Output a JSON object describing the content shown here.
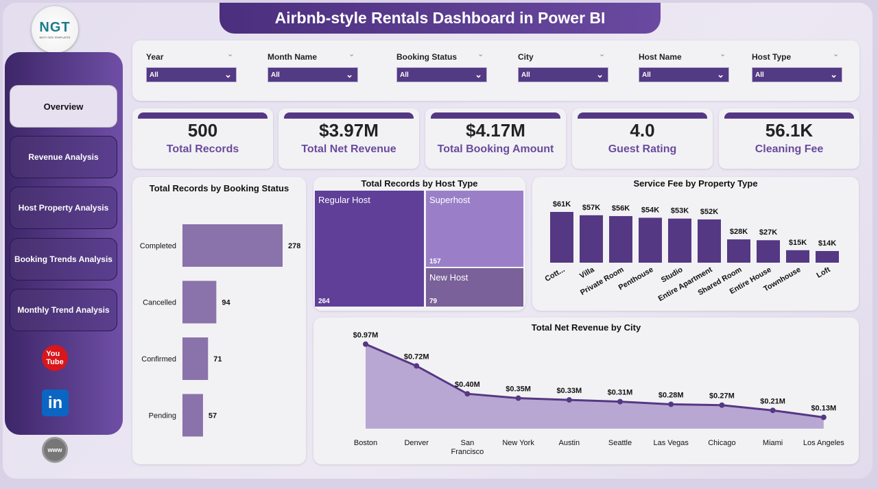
{
  "title": "Airbnb-style Rentals Dashboard in Power BI",
  "logo": {
    "text": "NGT",
    "sub": "NEXT GEN TEMPLATES"
  },
  "nav": [
    {
      "label": "Overview",
      "selected": true
    },
    {
      "label": "Revenue Analysis"
    },
    {
      "label": "Host Property Analysis"
    },
    {
      "label": "Booking Trends Analysis"
    },
    {
      "label": "Monthly Trend Analysis"
    }
  ],
  "social": [
    "youtube-icon",
    "linkedin-icon",
    "website-icon"
  ],
  "filters": [
    {
      "label": "Year",
      "value": "All"
    },
    {
      "label": "Month Name",
      "value": "All"
    },
    {
      "label": "Booking Status",
      "value": "All"
    },
    {
      "label": "City",
      "value": "All"
    },
    {
      "label": "Host Name",
      "value": "All"
    },
    {
      "label": "Host Type",
      "value": "All"
    }
  ],
  "kpis": [
    {
      "value": "500",
      "label": "Total Records"
    },
    {
      "value": "$3.97M",
      "label": "Total Net Revenue"
    },
    {
      "value": "$4.17M",
      "label": "Total Booking Amount"
    },
    {
      "value": "4.0",
      "label": "Guest Rating"
    },
    {
      "value": "56.1K",
      "label": "Cleaning Fee"
    }
  ],
  "colors": {
    "primary": "#553883",
    "bar_light": "#8a72aa",
    "area": "#b9a7d3"
  },
  "chart_data": [
    {
      "type": "bar",
      "orientation": "horizontal",
      "title": "Total Records by Booking Status",
      "categories": [
        "Completed",
        "Cancelled",
        "Confirmed",
        "Pending"
      ],
      "values": [
        278,
        94,
        71,
        57
      ],
      "labels": [
        "278",
        "94",
        "71",
        "57"
      ]
    },
    {
      "type": "treemap",
      "title": "Total Records by Host Type",
      "categories": [
        "Regular Host",
        "Superhost",
        "New Host"
      ],
      "values": [
        264,
        157,
        79
      ],
      "labels": [
        "264",
        "157",
        "79"
      ]
    },
    {
      "type": "bar",
      "title": "Service Fee by Property Type",
      "categories": [
        "Cott...",
        "Villa",
        "Private Room",
        "Penthouse",
        "Studio",
        "Entire Apartment",
        "Shared Room",
        "Entire House",
        "Townhouse",
        "Loft"
      ],
      "values": [
        61,
        57,
        56,
        54,
        53,
        52,
        28,
        27,
        15,
        14
      ],
      "labels": [
        "$61K",
        "$57K",
        "$56K",
        "$54K",
        "$53K",
        "$52K",
        "$28K",
        "$27K",
        "$15K",
        "$14K"
      ]
    },
    {
      "type": "area",
      "title": "Total Net Revenue by City",
      "categories": [
        "Boston",
        "Denver",
        "San Francisco",
        "New York",
        "Austin",
        "Seattle",
        "Las Vegas",
        "Chicago",
        "Miami",
        "Los Angeles"
      ],
      "values": [
        0.97,
        0.72,
        0.4,
        0.35,
        0.33,
        0.31,
        0.28,
        0.27,
        0.21,
        0.13
      ],
      "labels": [
        "$0.97M",
        "$0.72M",
        "$0.40M",
        "$0.35M",
        "$0.33M",
        "$0.31M",
        "$0.28M",
        "$0.27M",
        "$0.21M",
        "$0.13M"
      ]
    }
  ]
}
